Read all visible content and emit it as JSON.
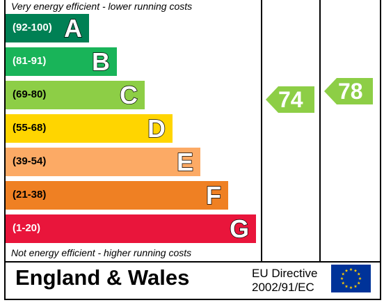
{
  "top_note": "Very energy efficient - lower running costs",
  "bottom_note": "Not energy efficient - higher running costs",
  "region": "England & Wales",
  "directive": {
    "line1": "EU Directive",
    "line2": "2002/91/EC"
  },
  "chart_data": {
    "type": "bar",
    "bands": [
      {
        "range": "(92-100)",
        "letter": "A",
        "color": "#008054"
      },
      {
        "range": "(81-91)",
        "letter": "B",
        "color": "#19b459"
      },
      {
        "range": "(69-80)",
        "letter": "C",
        "color": "#8dce46"
      },
      {
        "range": "(55-68)",
        "letter": "D",
        "color": "#ffd500"
      },
      {
        "range": "(39-54)",
        "letter": "E",
        "color": "#fcaa65"
      },
      {
        "range": "(21-38)",
        "letter": "F",
        "color": "#ef8023"
      },
      {
        "range": "(1-20)",
        "letter": "G",
        "color": "#e9153b"
      }
    ],
    "current": {
      "value": "74",
      "color": "#8dce46"
    },
    "potential": {
      "value": "78",
      "color": "#8dce46"
    }
  }
}
